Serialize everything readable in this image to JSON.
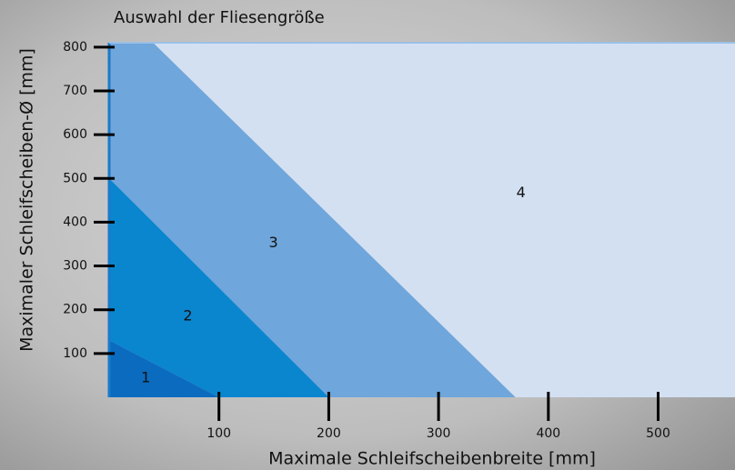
{
  "chart_data": {
    "type": "area-regions",
    "title": "Auswahl der Fliesengröße",
    "x_label": "Maximale Schleifscheibenbreite [mm]",
    "y_label": "Maximaler Schleifscheiben-Ø [mm]",
    "xlim": [
      0,
      570
    ],
    "ylim": [
      0,
      810
    ],
    "xticks": [
      100,
      200,
      300,
      400,
      500
    ],
    "yticks": [
      100,
      200,
      300,
      400,
      500,
      600,
      700,
      800
    ],
    "series": [
      {
        "name": "4",
        "color": "#d3e0f2",
        "x": [
          40,
          570,
          570,
          370
        ],
        "values": [
          810,
          810,
          0,
          0
        ]
      },
      {
        "name": "3",
        "color": "#6fa6db",
        "x": [
          0,
          0,
          40,
          370,
          200
        ],
        "values": [
          500,
          810,
          810,
          0,
          0
        ]
      },
      {
        "name": "2",
        "color": "#0a86cf",
        "x": [
          0,
          0,
          200,
          100
        ],
        "values": [
          130,
          500,
          0,
          0
        ]
      },
      {
        "name": "1",
        "color": "#0a6bbf",
        "x": [
          0,
          0,
          100
        ],
        "values": [
          0,
          130,
          0
        ]
      }
    ]
  }
}
